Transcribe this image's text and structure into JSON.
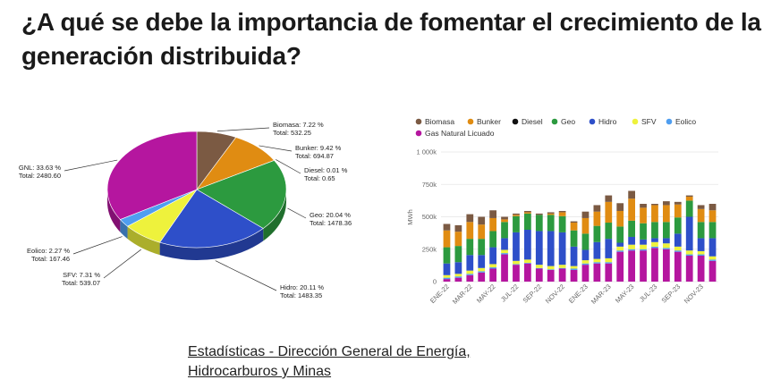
{
  "title": "¿A qué se debe la importancia de fomentar el crecimiento de la generación distribuida?",
  "source": {
    "line1": "Estadísticas - Dirección General de Energía,",
    "line2": "Hidrocarburos y Minas"
  },
  "chart_data": [
    {
      "type": "pie",
      "slices": [
        {
          "name": "Biomasa",
          "percent": "7.22 %",
          "total": "Total: 532.25",
          "value": 532.25,
          "color": "#7b5a43"
        },
        {
          "name": "Bunker",
          "percent": "9.42 %",
          "total": "Total: 694.87",
          "value": 694.87,
          "color": "#e08c12"
        },
        {
          "name": "Diesel",
          "percent": "0.01 %",
          "total": "Total: 0.65",
          "value": 0.65,
          "color": "#111111"
        },
        {
          "name": "Geo",
          "percent": "20.04 %",
          "total": "Total: 1478.36",
          "value": 1478.36,
          "color": "#2c9a3f"
        },
        {
          "name": "Hidro",
          "percent": "20.11 %",
          "total": "Total: 1483.35",
          "value": 1483.35,
          "color": "#2e4fc9"
        },
        {
          "name": "SFV",
          "percent": "7.31 %",
          "total": "Total: 539.07",
          "value": 539.07,
          "color": "#eef23c"
        },
        {
          "name": "Eolico",
          "percent": "2.27 %",
          "total": "Total: 167.46",
          "value": 167.46,
          "color": "#4f9ef0"
        },
        {
          "name": "GNL",
          "percent": "33.63 %",
          "total": "Total: 2480.60",
          "value": 2480.6,
          "color": "#b5169f"
        }
      ]
    },
    {
      "type": "bar",
      "stacked": true,
      "ylabel": "MWh",
      "ylim": [
        0,
        1000
      ],
      "yticks": [
        0,
        250,
        500,
        750,
        1000
      ],
      "ytick_labels": [
        "0",
        "250k",
        "500k",
        "750k",
        "1 000k"
      ],
      "categories": [
        "ENE-22",
        "FEB-22",
        "MAR-22",
        "ABR-22",
        "MAY-22",
        "JUN-22",
        "JUL-22",
        "AGO-22",
        "SEP-22",
        "OCT-22",
        "NOV-22",
        "DIC-22",
        "ENE-23",
        "FEB-23",
        "MAR-23",
        "ABR-23",
        "MAY-23",
        "JUN-23",
        "JUL-23",
        "AGO-23",
        "SEP-23",
        "OCT-23",
        "NOV-23",
        "DIC-23"
      ],
      "visible_tick_labels": [
        "ENE-22",
        "MAR-22",
        "MAY-22",
        "JUL-22",
        "SEP-22",
        "NOV-22",
        "ENE-23",
        "MAR-23",
        "MAY-23",
        "JUL-23",
        "SEP-23",
        "NOV-23"
      ],
      "legend": [
        "Biomasa",
        "Bunker",
        "Diesel",
        "Geo",
        "Hidro",
        "SFV",
        "Eolico",
        "Gas Natural Licuado"
      ],
      "series": [
        {
          "name": "Gas Natural Licuado",
          "color": "#b5169f",
          "values": [
            20,
            30,
            50,
            70,
            100,
            210,
            130,
            140,
            100,
            90,
            100,
            90,
            130,
            140,
            140,
            230,
            240,
            240,
            260,
            250,
            230,
            200,
            200,
            160
          ]
        },
        {
          "name": "Eolico",
          "color": "#4f9ef0",
          "values": [
            10,
            10,
            10,
            10,
            10,
            10,
            5,
            5,
            5,
            5,
            5,
            10,
            10,
            10,
            10,
            10,
            10,
            10,
            10,
            10,
            10,
            10,
            10,
            10
          ]
        },
        {
          "name": "SFV",
          "color": "#eef23c",
          "values": [
            20,
            20,
            25,
            25,
            25,
            25,
            25,
            25,
            25,
            25,
            25,
            20,
            25,
            25,
            30,
            30,
            35,
            35,
            35,
            35,
            30,
            30,
            25,
            25
          ]
        },
        {
          "name": "Hidro",
          "color": "#2e4fc9",
          "values": [
            90,
            90,
            120,
            100,
            130,
            90,
            220,
            230,
            260,
            270,
            250,
            150,
            80,
            130,
            150,
            30,
            60,
            40,
            30,
            40,
            100,
            260,
            100,
            140
          ]
        },
        {
          "name": "Geo",
          "color": "#2c9a3f",
          "values": [
            125,
            125,
            125,
            125,
            125,
            125,
            125,
            125,
            125,
            125,
            125,
            125,
            125,
            125,
            125,
            125,
            125,
            125,
            125,
            125,
            125,
            125,
            125,
            125
          ]
        },
        {
          "name": "Diesel",
          "color": "#111111",
          "values": [
            0,
            0,
            0,
            0,
            0,
            0,
            0,
            0,
            0,
            0,
            0,
            0,
            0,
            0,
            0,
            0,
            0,
            0,
            0,
            0,
            0,
            0,
            0,
            0
          ]
        },
        {
          "name": "Bunker",
          "color": "#e08c12",
          "values": [
            130,
            110,
            130,
            110,
            100,
            20,
            10,
            10,
            0,
            10,
            30,
            60,
            120,
            110,
            160,
            120,
            170,
            120,
            130,
            130,
            100,
            30,
            100,
            90
          ]
        },
        {
          "name": "Biomasa",
          "color": "#7b5a43",
          "values": [
            50,
            50,
            60,
            60,
            60,
            20,
            10,
            10,
            10,
            10,
            10,
            10,
            50,
            50,
            50,
            60,
            60,
            30,
            10,
            30,
            20,
            10,
            30,
            50
          ]
        }
      ]
    }
  ]
}
